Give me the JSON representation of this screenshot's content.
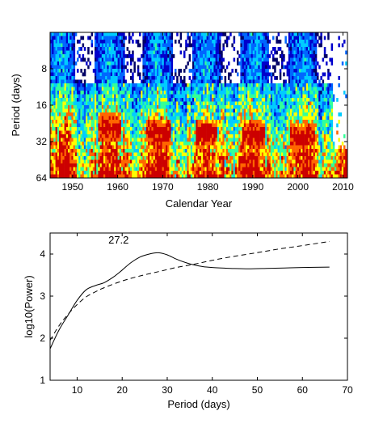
{
  "chart_data": [
    {
      "type": "heatmap",
      "title": "",
      "xlabel": "Calendar Year",
      "ylabel": "Period (days)",
      "xlim": [
        1945,
        2011
      ],
      "ylim": [
        4,
        64
      ],
      "yscale": "log2",
      "yreversed": true,
      "xticks": [
        1950,
        1960,
        1970,
        1980,
        1990,
        2000,
        2010
      ],
      "yticks": [
        8,
        16,
        32,
        64
      ],
      "colormap": [
        "#000066",
        "#0000cc",
        "#0066ff",
        "#00ccff",
        "#33ff99",
        "#ffff00",
        "#ff6600",
        "#cc0000"
      ],
      "bands": [
        {
          "x0": 1955.5,
          "x1": 1960.5,
          "cy": 24,
          "strength": 1.0
        },
        {
          "x0": 1966.0,
          "x1": 1971.5,
          "cy": 26,
          "strength": 0.9
        },
        {
          "x0": 1977.0,
          "x1": 1982.0,
          "cy": 26,
          "strength": 1.0
        },
        {
          "x0": 1987.5,
          "x1": 1992.5,
          "cy": 27,
          "strength": 1.0
        },
        {
          "x0": 1998.0,
          "x1": 2003.5,
          "cy": 28,
          "strength": 0.85
        }
      ],
      "grid": false
    },
    {
      "type": "line",
      "title": "",
      "xlabel": "Period (days)",
      "ylabel": "log10(Power)",
      "xlim": [
        4,
        70
      ],
      "ylim": [
        1,
        4.5
      ],
      "xticks": [
        10,
        20,
        30,
        40,
        50,
        60,
        70
      ],
      "yticks": [
        1,
        2,
        3,
        4
      ],
      "annotations": [
        {
          "text": "27.2",
          "x": 27.2,
          "y": 4.25
        }
      ],
      "series": [
        {
          "style": "solid",
          "x": [
            4,
            6,
            8,
            10,
            12,
            14,
            16,
            18,
            20,
            22,
            24,
            26,
            28,
            30,
            32,
            34,
            36,
            38,
            40,
            44,
            48,
            52,
            56,
            60,
            66
          ],
          "y": [
            1.75,
            2.2,
            2.55,
            2.9,
            3.15,
            3.25,
            3.32,
            3.45,
            3.62,
            3.8,
            3.93,
            4.0,
            4.03,
            3.98,
            3.88,
            3.8,
            3.74,
            3.7,
            3.68,
            3.66,
            3.65,
            3.66,
            3.67,
            3.68,
            3.69
          ]
        },
        {
          "style": "dashed",
          "x": [
            4,
            6,
            8,
            10,
            12,
            14,
            16,
            20,
            24,
            28,
            32,
            36,
            40,
            44,
            48,
            52,
            56,
            60,
            66
          ],
          "y": [
            1.95,
            2.3,
            2.57,
            2.8,
            2.98,
            3.1,
            3.2,
            3.36,
            3.48,
            3.58,
            3.68,
            3.76,
            3.85,
            3.93,
            4.0,
            4.07,
            4.14,
            4.2,
            4.3
          ]
        }
      ],
      "grid": false
    }
  ]
}
